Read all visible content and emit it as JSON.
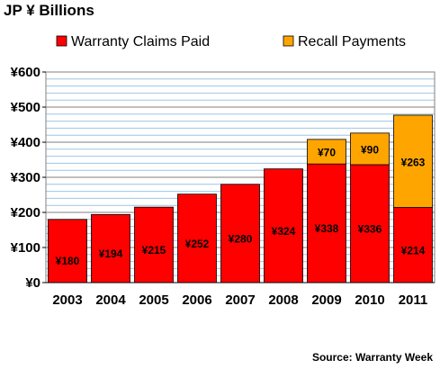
{
  "title": "JP ¥ Billions",
  "source": "Source: Warranty Week",
  "chart_data": {
    "type": "bar",
    "stacked": true,
    "title": "JP ¥ Billions",
    "categories": [
      "2003",
      "2004",
      "2005",
      "2006",
      "2007",
      "2008",
      "2009",
      "2010",
      "2011"
    ],
    "series": [
      {
        "name": "Warranty Claims Paid",
        "color": "#ff0000",
        "values": [
          180,
          194,
          215,
          252,
          280,
          324,
          338,
          336,
          214
        ],
        "labels": [
          "¥180",
          "¥194",
          "¥215",
          "¥252",
          "¥280",
          "¥324",
          "¥338",
          "¥336",
          "¥214"
        ]
      },
      {
        "name": "Recall Payments",
        "color": "#ffa500",
        "values": [
          null,
          null,
          null,
          null,
          null,
          null,
          70,
          90,
          263
        ],
        "labels": [
          null,
          null,
          null,
          null,
          null,
          null,
          "¥70",
          "¥90",
          "¥263"
        ]
      }
    ],
    "ylim": [
      0,
      600
    ],
    "yticks": [
      0,
      100,
      200,
      300,
      400,
      500,
      600
    ],
    "ytick_labels": [
      "¥0",
      "¥100",
      "¥200",
      "¥300",
      "¥400",
      "¥500",
      "¥600"
    ],
    "grid": true,
    "legend": "top"
  }
}
